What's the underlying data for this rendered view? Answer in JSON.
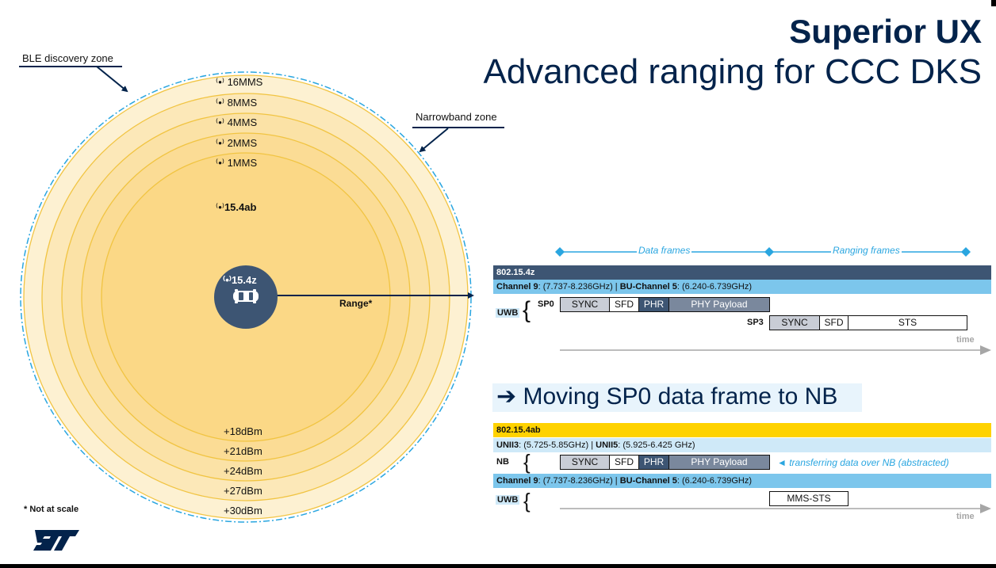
{
  "slide": {
    "title_bold": "Superior UX",
    "title_sub": "Advanced ranging for CCC DKS",
    "footnote": "* Not at scale",
    "logo_icon": "st-logo-icon"
  },
  "zones": {
    "ble_label": "BLE discovery zone",
    "narrowband_label": "Narrowband zone"
  },
  "rings": {
    "mms_labels": [
      "16MMS",
      "8MMS",
      "4MMS",
      "2MMS",
      "1MMS"
    ],
    "ab_label": "15.4ab",
    "dbm_labels": [
      "+18dBm",
      "+21dBm",
      "+24dBm",
      "+27dBm",
      "+30dBm"
    ],
    "signal_icon": "wireless-signal-icon"
  },
  "center": {
    "label": "15.4z",
    "icon": "car-icon",
    "range_label": "Range*"
  },
  "colors": {
    "navy": "#03234b",
    "slate": "#3d5573",
    "sky": "#7cc6ec",
    "yellow": "#ffd200",
    "accent_blue": "#2aa6e0"
  },
  "timeline": {
    "data_frames_label": "Data frames",
    "ranging_frames_label": "Ranging frames"
  },
  "uwb_section": {
    "standard": "802.15.4z",
    "channel_prefix": "Channel 9",
    "channel_rest": ": (7.737-8.236GHz) | ",
    "bu_prefix": "BU-Channel 5",
    "bu_rest": ": (6.240-6.739GHz)",
    "proto_label": "UWB",
    "sp0_label": "SP0",
    "sp0_fields": [
      "SYNC",
      "SFD",
      "PHR",
      "PHY Payload"
    ],
    "sp3_label": "SP3",
    "sp3_fields": [
      "SYNC",
      "SFD",
      "STS"
    ],
    "time_label": "time"
  },
  "heading": {
    "arrow": "➔",
    "text": "Moving SP0 data frame to NB"
  },
  "nb_section": {
    "standard": "802.15.4ab",
    "unii3_prefix": "UNII3",
    "unii3_rest": ": (5.725-5.85GHz) | ",
    "unii5_prefix": "UNII5",
    "unii5_rest": ": (5.925-6.425 GHz)",
    "nb_label": "NB",
    "nb_fields": [
      "SYNC",
      "SFD",
      "PHR",
      "PHY Payload"
    ],
    "nb_note": "◄ transferring data over NB (abstracted)",
    "channel_prefix": "Channel 9",
    "channel_rest": ": (7.737-8.236GHz) | ",
    "bu_prefix": "BU-Channel 5",
    "bu_rest": ": (6.240-6.739GHz)",
    "uwb_label": "UWB",
    "uwb_field": "MMS-STS",
    "time_label": "time"
  }
}
